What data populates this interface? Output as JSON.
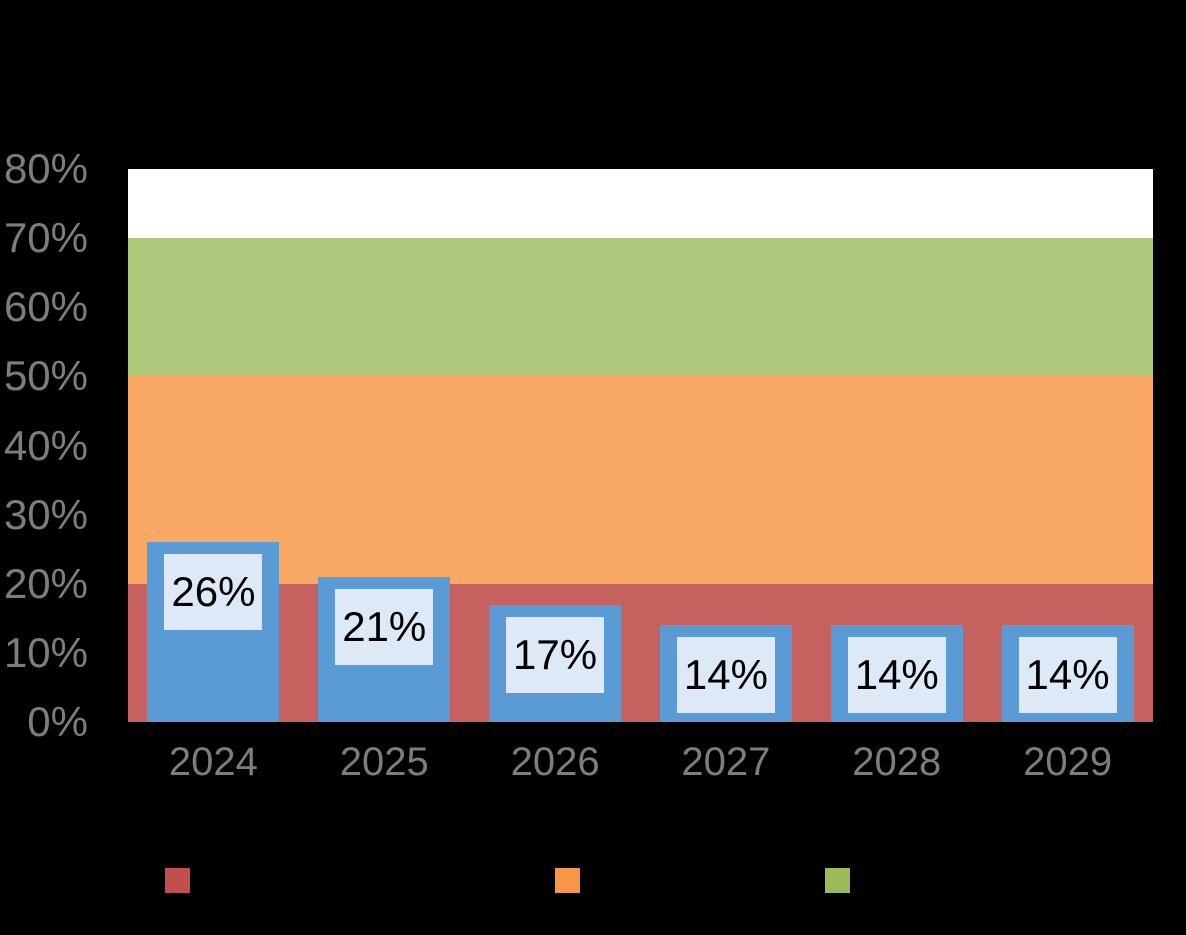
{
  "chart_data": {
    "type": "bar",
    "categories": [
      "2024",
      "2025",
      "2026",
      "2027",
      "2028",
      "2029"
    ],
    "series": [
      {
        "name": "blue-bar-series",
        "values": [
          26,
          21,
          17,
          14,
          14,
          14
        ],
        "data_labels": [
          "26%",
          "21%",
          "17%",
          "14%",
          "14%",
          "14%"
        ]
      }
    ],
    "ylim": [
      0,
      80
    ],
    "yticks": [
      {
        "label": "0%",
        "value": 0
      },
      {
        "label": "10%",
        "value": 10
      },
      {
        "label": "20%",
        "value": 20
      },
      {
        "label": "30%",
        "value": 30
      },
      {
        "label": "40%",
        "value": 40
      },
      {
        "label": "50%",
        "value": 50
      },
      {
        "label": "60%",
        "value": 60
      },
      {
        "label": "70%",
        "value": 70
      },
      {
        "label": "80%",
        "value": 80
      }
    ],
    "grid": false,
    "legend_position": "bottom",
    "background_bands": [
      {
        "name": "band-red",
        "from": 0,
        "to": 20,
        "color": "#C5615E"
      },
      {
        "name": "band-orange",
        "from": 20,
        "to": 50,
        "color": "#F9A964"
      },
      {
        "name": "band-green",
        "from": 50,
        "to": 70,
        "color": "#AECB7D"
      },
      {
        "name": "band-white",
        "from": 70,
        "to": 80,
        "color": "#FFFFFF"
      }
    ],
    "colors": {
      "bar": "#5B9BD5",
      "bar_label_box": "#DEE9F7",
      "bar_label_text": "#000000",
      "axis_text": "#7D7D7D",
      "background": "#000000"
    },
    "legend_swatches": [
      {
        "name": "legend-swatch-red",
        "color": "#C0504D"
      },
      {
        "name": "legend-swatch-orange",
        "color": "#F79646"
      },
      {
        "name": "legend-swatch-green",
        "color": "#9BBB59"
      }
    ]
  }
}
